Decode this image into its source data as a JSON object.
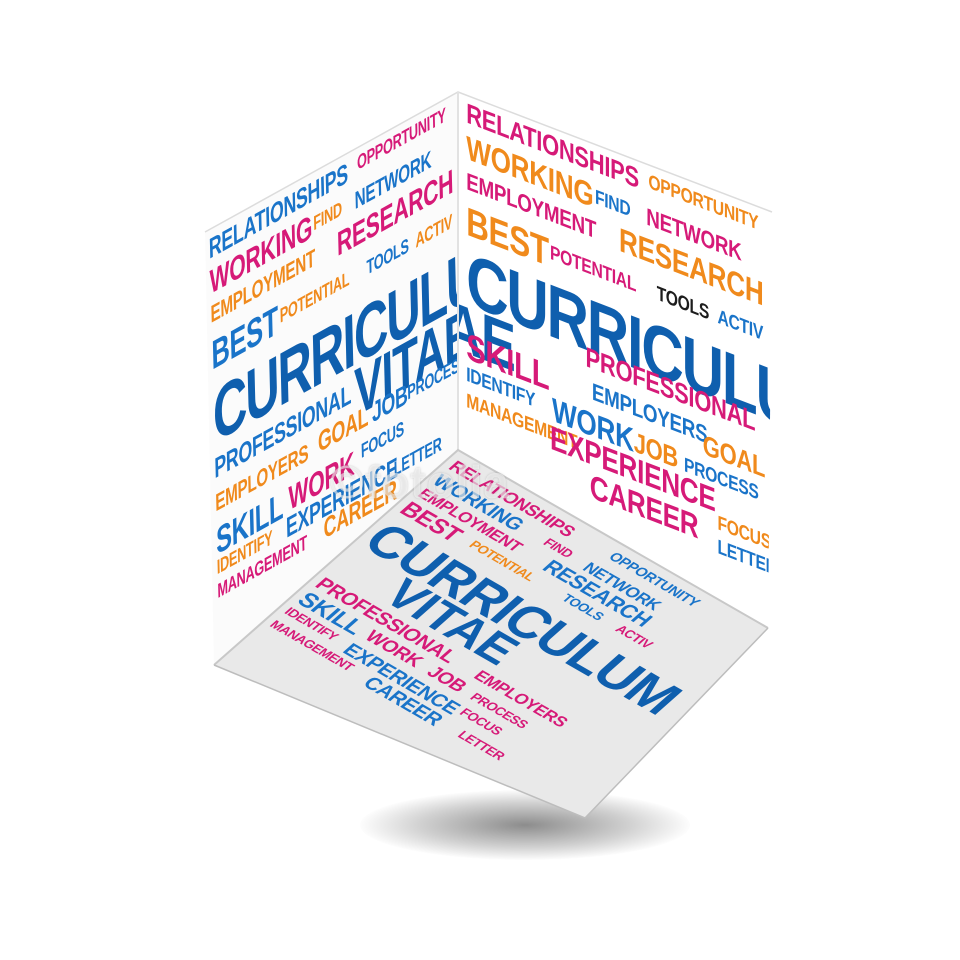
{
  "words": {
    "relationships": "RELATIONSHIPS",
    "opportunity": "OPPORTUNITY",
    "working": "WORKING",
    "find": "FIND",
    "network": "NETWORK",
    "employment": "EMPLOYMENT",
    "research": "RESEARCH",
    "best": "BEST",
    "potential": "POTENTIAL",
    "tools": "TOOLS",
    "activ": "ACTIV",
    "curriculum": "CURRICULUM",
    "vitae": "VITAE",
    "professional": "PROFESSIONAL",
    "employers": "EMPLOYERS",
    "goal": "GOAL",
    "skill": "SKILL",
    "work": "WORK",
    "job": "JOB",
    "process": "PROCESS",
    "identify": "IDENTIFY",
    "experience": "EXPERIENCE",
    "focus": "FOCUS",
    "management": "MANAGEMENT",
    "career": "CAREER",
    "letter": "LETTER"
  },
  "watermark": "©fotolia",
  "colors": {
    "blue": "#1a74c9",
    "dark_blue": "#0f5fae",
    "magenta": "#d61a78",
    "orange": "#f08a1c",
    "black": "#1d1d1d"
  }
}
